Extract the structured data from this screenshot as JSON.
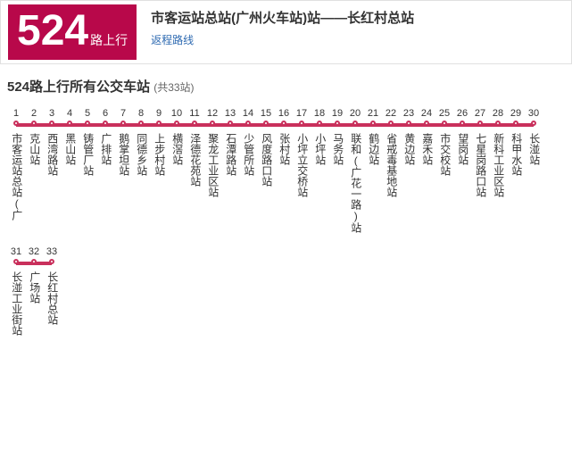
{
  "route": {
    "number": "524",
    "direction": "路上行",
    "title": "市客运站总站(广州火车站)站——长红村总站",
    "return_link": "返程路线"
  },
  "section": {
    "title": "524路上行所有公交车站",
    "count": "(共33站)"
  },
  "style": {
    "badge_bg": "#b8084a",
    "line_color": "#c9305c",
    "stop_width": 20,
    "row_capacity": 30
  },
  "stops": [
    "市客运站总站(广",
    "克山站",
    "西湾路站",
    "黑山站",
    "铸管厂站",
    "广排站",
    "鹅掌坦站",
    "同德乡站",
    "上步村站",
    "横滘站",
    "泽德花苑站",
    "聚龙工业区站",
    "石潭路站",
    "少管所站",
    "风度路口站",
    "张村站",
    "小坪立交桥站",
    "小坪站",
    "马务站",
    "联和(广花一路)站",
    "鹤边站",
    "省戒毒基地站",
    "黄边站",
    "嘉禾站",
    "市交校站",
    "望岗站",
    "七星岗路口站",
    "新科工业区站",
    "科甲水站",
    "长湴站",
    "长湴工业街站",
    "广场站",
    "长红村总站"
  ]
}
